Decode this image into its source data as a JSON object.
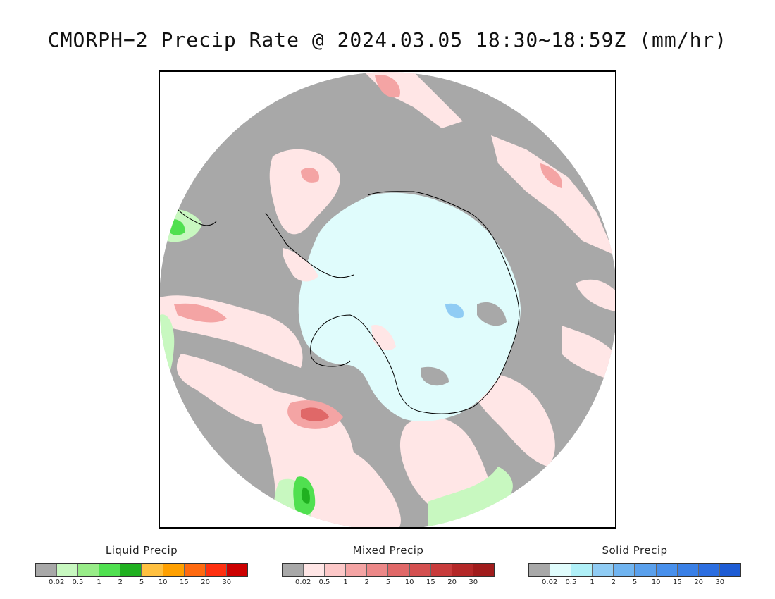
{
  "title": "CMORPH−2 Precip Rate @ 2024.03.05 18:30~18:59Z (mm/hr)",
  "map": {
    "projection": "south polar stereographic",
    "colors": {
      "no_precip_gray": "#a8a8a8",
      "antarctica_solid": "#e0fcfc",
      "coastline": "#000000"
    }
  },
  "legends": [
    {
      "id": "liquid",
      "title": "Liquid Precip",
      "colors": [
        "#a8a8a8",
        "#c8f8c0",
        "#98ec88",
        "#50e050",
        "#20b020",
        "#ffc040",
        "#ffa000",
        "#ff6a10",
        "#ff3010",
        "#cc0000"
      ],
      "ticks": [
        "0.02",
        "0.5",
        "1",
        "2",
        "5",
        "10",
        "15",
        "20",
        "30"
      ]
    },
    {
      "id": "mixed",
      "title": "Mixed Precip",
      "colors": [
        "#a8a8a8",
        "#ffe6e6",
        "#fcc8c8",
        "#f4a4a4",
        "#ec8888",
        "#e06868",
        "#d45050",
        "#c83c3c",
        "#b42828",
        "#a01c1c"
      ],
      "ticks": [
        "0.02",
        "0.5",
        "1",
        "2",
        "5",
        "10",
        "15",
        "20",
        "30"
      ]
    },
    {
      "id": "solid",
      "title": "Solid Precip",
      "colors": [
        "#a8a8a8",
        "#e0fcfc",
        "#b0f0f8",
        "#90ccf4",
        "#70b4f0",
        "#5aa0ec",
        "#4890ec",
        "#3a80e6",
        "#2c6ee0",
        "#1e5cd4"
      ],
      "ticks": [
        "0.02",
        "0.5",
        "1",
        "2",
        "5",
        "10",
        "15",
        "20",
        "30"
      ]
    }
  ]
}
